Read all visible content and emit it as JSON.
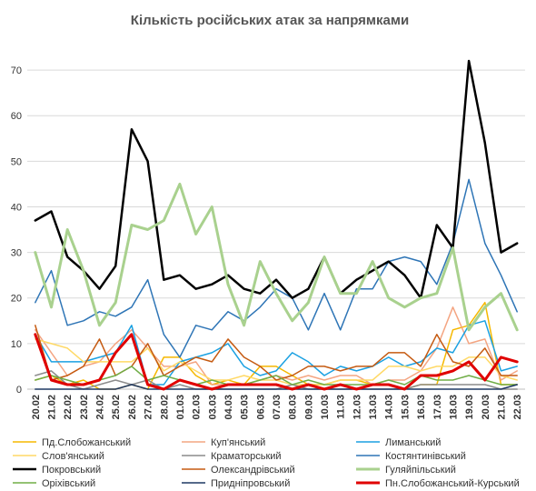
{
  "chart_data": {
    "type": "line",
    "title": "Кількість російських атак за напрямками",
    "xlabel": "",
    "ylabel": "",
    "ylim": [
      0,
      75
    ],
    "yticks": [
      0,
      10,
      20,
      30,
      40,
      50,
      60,
      70
    ],
    "grid": true,
    "legend_position": "bottom",
    "categories": [
      "20.02",
      "21.02",
      "22.02",
      "23.02",
      "24.02",
      "25.02",
      "26.02",
      "27.02",
      "28.02",
      "01.03",
      "02.03",
      "03.03",
      "04.03",
      "05.03",
      "06.03",
      "07.03",
      "08.03",
      "09.03",
      "10.03",
      "11.03",
      "12.03",
      "13.03",
      "14.03",
      "15.03",
      "16.03",
      "17.03",
      "18.03",
      "19.03",
      "20.03",
      "21.03",
      "22.03"
    ],
    "series": [
      {
        "name": "Пд.Слобожанський",
        "color": "#f5b800",
        "width": 1.5,
        "values": [
          2,
          3,
          1,
          2,
          0,
          0,
          1,
          0,
          7,
          7,
          3,
          1,
          2,
          1,
          5,
          5,
          3,
          1,
          1,
          2,
          2,
          1,
          1,
          0,
          1,
          1,
          13,
          14,
          19,
          1,
          1
        ]
      },
      {
        "name": "Куп'янський",
        "color": "#f4a582",
        "width": 1.5,
        "values": [
          13,
          8,
          3,
          5,
          6,
          10,
          13,
          9,
          5,
          5,
          6,
          1,
          1,
          1,
          2,
          3,
          2,
          3,
          2,
          3,
          3,
          1,
          2,
          2,
          4,
          9,
          18,
          10,
          11,
          2,
          4
        ]
      },
      {
        "name": "Лиманський",
        "color": "#1ba1e2",
        "width": 1.5,
        "values": [
          12,
          6,
          6,
          6,
          7,
          8,
          14,
          1,
          1,
          6,
          7,
          8,
          10,
          5,
          3,
          4,
          8,
          6,
          3,
          5,
          4,
          5,
          7,
          5,
          6,
          9,
          8,
          14,
          15,
          4,
          5
        ]
      },
      {
        "name": "Слов'янський",
        "color": "#ffd966",
        "width": 1.5,
        "values": [
          11,
          10,
          9,
          6,
          6,
          6,
          6,
          9,
          4,
          6,
          4,
          2,
          2,
          3,
          2,
          2,
          1,
          1,
          1,
          2,
          2,
          2,
          5,
          5,
          4,
          5,
          5,
          7,
          7,
          3,
          2
        ]
      },
      {
        "name": "Краматорський",
        "color": "#8c8c8c",
        "width": 1.5,
        "values": [
          3,
          4,
          1,
          0,
          1,
          2,
          1,
          2,
          0,
          1,
          0,
          0,
          0,
          0,
          0,
          0,
          1,
          0,
          0,
          0,
          0,
          0,
          0,
          0,
          1,
          1,
          1,
          1,
          1,
          0,
          0
        ]
      },
      {
        "name": "Костянтинівський",
        "color": "#2e75b6",
        "width": 1.5,
        "values": [
          19,
          26,
          14,
          15,
          17,
          16,
          18,
          24,
          12,
          7,
          14,
          13,
          17,
          15,
          18,
          22,
          20,
          13,
          21,
          13,
          22,
          22,
          28,
          29,
          28,
          23,
          32,
          46,
          32,
          25,
          17
        ]
      },
      {
        "name": "Покровський",
        "color": "#000000",
        "width": 2.5,
        "values": [
          37,
          39,
          29,
          26,
          22,
          27,
          57,
          50,
          24,
          25,
          22,
          23,
          25,
          22,
          21,
          24,
          20,
          22,
          29,
          21,
          24,
          26,
          28,
          25,
          20,
          36,
          31,
          72,
          54,
          30,
          32
        ]
      },
      {
        "name": "Олександрівський",
        "color": "#c55a11",
        "width": 1.5,
        "values": [
          14,
          2,
          3,
          5,
          11,
          3,
          5,
          10,
          3,
          5,
          7,
          6,
          11,
          7,
          5,
          2,
          3,
          5,
          5,
          4,
          5,
          5,
          8,
          8,
          5,
          12,
          6,
          5,
          9,
          3,
          3
        ]
      },
      {
        "name": "Гуляйпільський",
        "color": "#a9d18e",
        "width": 3,
        "values": [
          30,
          18,
          35,
          26,
          14,
          19,
          36,
          35,
          37,
          45,
          34,
          40,
          23,
          14,
          28,
          21,
          15,
          19,
          29,
          21,
          21,
          28,
          20,
          18,
          20,
          21,
          31,
          13,
          18,
          21,
          13
        ]
      },
      {
        "name": "Оріхівський",
        "color": "#70ad47",
        "width": 1.5,
        "values": [
          2,
          3,
          2,
          1,
          2,
          3,
          5,
          2,
          3,
          2,
          1,
          2,
          1,
          1,
          2,
          3,
          1,
          2,
          1,
          1,
          1,
          1,
          2,
          1,
          3,
          2,
          2,
          3,
          2,
          1,
          1
        ]
      },
      {
        "name": "Придніпровський",
        "color": "#1f3864",
        "width": 1.5,
        "values": [
          0,
          0,
          0,
          0,
          0,
          0,
          1,
          0,
          0,
          0,
          0,
          0,
          0,
          0,
          0,
          0,
          0,
          0,
          0,
          0,
          0,
          0,
          0,
          0,
          0,
          0,
          0,
          0,
          0,
          0,
          1
        ]
      },
      {
        "name": "Пн.Слобожанський-Курський",
        "color": "#e00000",
        "width": 3,
        "values": [
          12,
          2,
          1,
          1,
          2,
          8,
          12,
          1,
          0,
          2,
          1,
          0,
          1,
          1,
          1,
          1,
          0,
          1,
          0,
          1,
          0,
          1,
          1,
          0,
          3,
          3,
          4,
          6,
          2,
          7,
          6
        ]
      }
    ]
  }
}
